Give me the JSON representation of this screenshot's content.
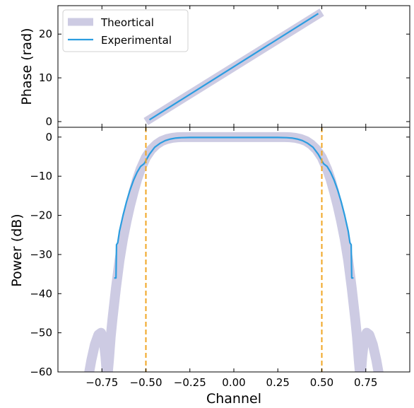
{
  "chart_data": [
    {
      "type": "line",
      "panel": "top",
      "title": "",
      "xlabel": "",
      "ylabel": "Phase (rad)",
      "xlim": [
        -1.0,
        1.0
      ],
      "ylim": [
        -1.3,
        26.5
      ],
      "yticks": [
        0,
        10,
        20
      ],
      "ytick_labels": [
        "0",
        "10",
        "20"
      ],
      "grid": false,
      "legend": {
        "placement": "top-left",
        "entries": [
          {
            "label": "Theortical",
            "color": "#cdcbe3"
          },
          {
            "label": "Experimental",
            "color": "#2b9de0"
          }
        ]
      },
      "series": [
        {
          "name": "Theortical",
          "color": "#cdcbe3",
          "x": [
            -0.5,
            0.5
          ],
          "y": [
            0.0,
            25.0
          ]
        },
        {
          "name": "Experimental",
          "color": "#2b9de0",
          "x": [
            -0.48,
            0.48
          ],
          "y": [
            0.4,
            24.7
          ]
        }
      ]
    },
    {
      "type": "line",
      "panel": "bottom",
      "title": "",
      "xlabel": "Channel",
      "ylabel": "Power (dB)",
      "xlim": [
        -1.0,
        1.0
      ],
      "ylim": [
        -60,
        2.5
      ],
      "xticks": [
        -0.75,
        -0.5,
        -0.25,
        0.0,
        0.25,
        0.5,
        0.75
      ],
      "xtick_labels": [
        "−0.75",
        "−0.50",
        "−0.25",
        "0.00",
        "0.25",
        "0.50",
        "0.75"
      ],
      "yticks": [
        0,
        -10,
        -20,
        -30,
        -40,
        -50,
        -60
      ],
      "ytick_labels": [
        "0",
        "−10",
        "−20",
        "−30",
        "−40",
        "−50",
        "−60"
      ],
      "grid": false,
      "vlines": [
        {
          "x": -0.5,
          "color": "#f0a623",
          "style": "dashed"
        },
        {
          "x": 0.5,
          "color": "#f0a623",
          "style": "dashed"
        }
      ],
      "series": [
        {
          "name": "Theortical",
          "color": "#cdcbe3",
          "x": [
            -0.83,
            -0.81,
            -0.79,
            -0.77,
            -0.755,
            -0.74,
            -0.73,
            -0.72,
            -0.71,
            -0.7,
            -0.69,
            -0.68,
            -0.67,
            -0.66,
            -0.65,
            -0.63,
            -0.61,
            -0.59,
            -0.57,
            -0.55,
            -0.53,
            -0.5,
            -0.47,
            -0.44,
            -0.41,
            -0.38,
            -0.35,
            -0.32,
            -0.29,
            -0.25,
            -0.2,
            -0.1,
            0.0,
            0.1,
            0.2,
            0.25,
            0.29,
            0.32,
            0.35,
            0.38,
            0.41,
            0.44,
            0.47,
            0.5,
            0.53,
            0.55,
            0.57,
            0.59,
            0.61,
            0.63,
            0.65,
            0.66,
            0.67,
            0.68,
            0.69,
            0.7,
            0.71,
            0.72,
            0.73,
            0.74,
            0.755,
            0.77,
            0.79,
            0.81,
            0.83
          ],
          "y": [
            -62,
            -57,
            -53,
            -50.5,
            -50,
            -52,
            -56,
            -62,
            -57,
            -51,
            -46.5,
            -42.5,
            -38.5,
            -35,
            -31.5,
            -26,
            -21.5,
            -17.5,
            -14,
            -10.8,
            -8.2,
            -5.2,
            -3.2,
            -1.9,
            -1.0,
            -0.5,
            -0.2,
            -0.05,
            0.0,
            0.0,
            0.0,
            0.0,
            0.0,
            0.0,
            0.0,
            0.0,
            0.0,
            -0.05,
            -0.2,
            -0.5,
            -1.0,
            -1.9,
            -3.2,
            -5.2,
            -8.2,
            -10.8,
            -14,
            -17.5,
            -21.5,
            -26,
            -31.5,
            -35,
            -38.5,
            -42.5,
            -46.5,
            -51,
            -57,
            -62,
            -56,
            -52,
            -50,
            -50.5,
            -53,
            -57,
            -62
          ]
        },
        {
          "name": "Experimental",
          "color": "#2b9de0",
          "x": [
            -0.68,
            -0.67,
            -0.667,
            -0.66,
            -0.65,
            -0.63,
            -0.61,
            -0.59,
            -0.57,
            -0.55,
            -0.53,
            -0.51,
            -0.5,
            -0.48,
            -0.45,
            -0.42,
            -0.39,
            -0.36,
            -0.33,
            -0.3,
            -0.25,
            -0.15,
            -0.05,
            0.05,
            0.15,
            0.25,
            0.3,
            0.33,
            0.36,
            0.39,
            0.42,
            0.45,
            0.48,
            0.5,
            0.51,
            0.53,
            0.55,
            0.57,
            0.59,
            0.61,
            0.63,
            0.65,
            0.66,
            0.667,
            0.67,
            0.68
          ],
          "y": [
            -36,
            -36,
            -27.5,
            -27,
            -24,
            -20,
            -16.5,
            -13.5,
            -11,
            -9,
            -7.5,
            -6.8,
            -6,
            -4.4,
            -2.6,
            -1.6,
            -0.9,
            -0.5,
            -0.25,
            -0.15,
            -0.1,
            -0.1,
            -0.1,
            -0.1,
            -0.1,
            -0.1,
            -0.15,
            -0.25,
            -0.5,
            -0.9,
            -1.6,
            -2.6,
            -4.4,
            -6,
            -6.8,
            -7.5,
            -9,
            -11,
            -13.5,
            -16.5,
            -20,
            -24,
            -27,
            -27.5,
            -36,
            -36
          ]
        }
      ]
    }
  ]
}
